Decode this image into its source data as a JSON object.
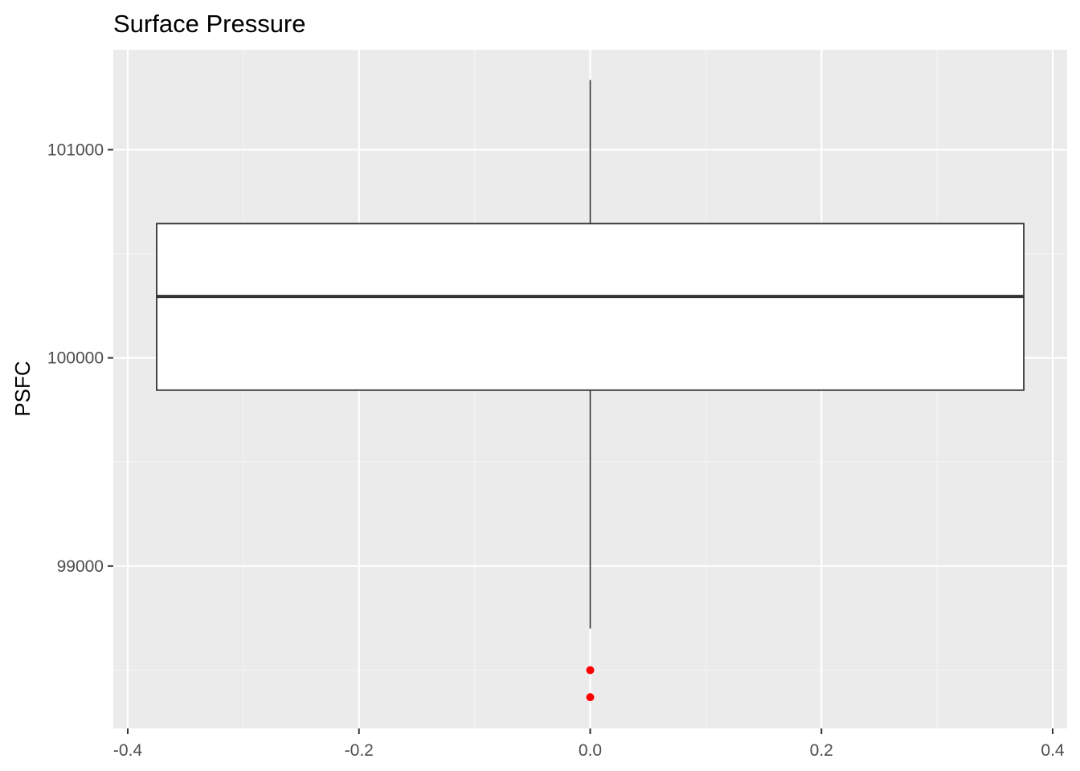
{
  "chart_data": {
    "type": "box",
    "title": "Surface Pressure",
    "xlabel": "",
    "ylabel": "PSFC",
    "xlim": [
      -0.4125,
      0.4125
    ],
    "ylim": [
      98220,
      101480
    ],
    "x_ticks": [
      -0.4,
      -0.2,
      0.0,
      0.2,
      0.4
    ],
    "x_tick_labels": [
      "-0.4",
      "-0.2",
      "0.0",
      "0.2",
      "0.4"
    ],
    "y_ticks": [
      99000,
      100000,
      101000
    ],
    "y_tick_labels": [
      "99000",
      "100000",
      "101000"
    ],
    "y_minor_ticks": [
      98500,
      99500,
      100500
    ],
    "x_minor_ticks": [
      -0.3,
      -0.1,
      0.1,
      0.3
    ],
    "grid": true,
    "box": {
      "x": 0.0,
      "width": 0.75,
      "lower_whisker": 98700,
      "q1": 99845,
      "median": 100295,
      "q3": 100645,
      "upper_whisker": 101335
    },
    "outliers": [
      98500,
      98370
    ],
    "colors": {
      "panel_background": "#ebebeb",
      "grid_major": "#ffffff",
      "grid_minor": "#f5f5f5",
      "box_fill": "#ffffff",
      "box_line": "#333333",
      "outlier": "#ff0000"
    }
  }
}
